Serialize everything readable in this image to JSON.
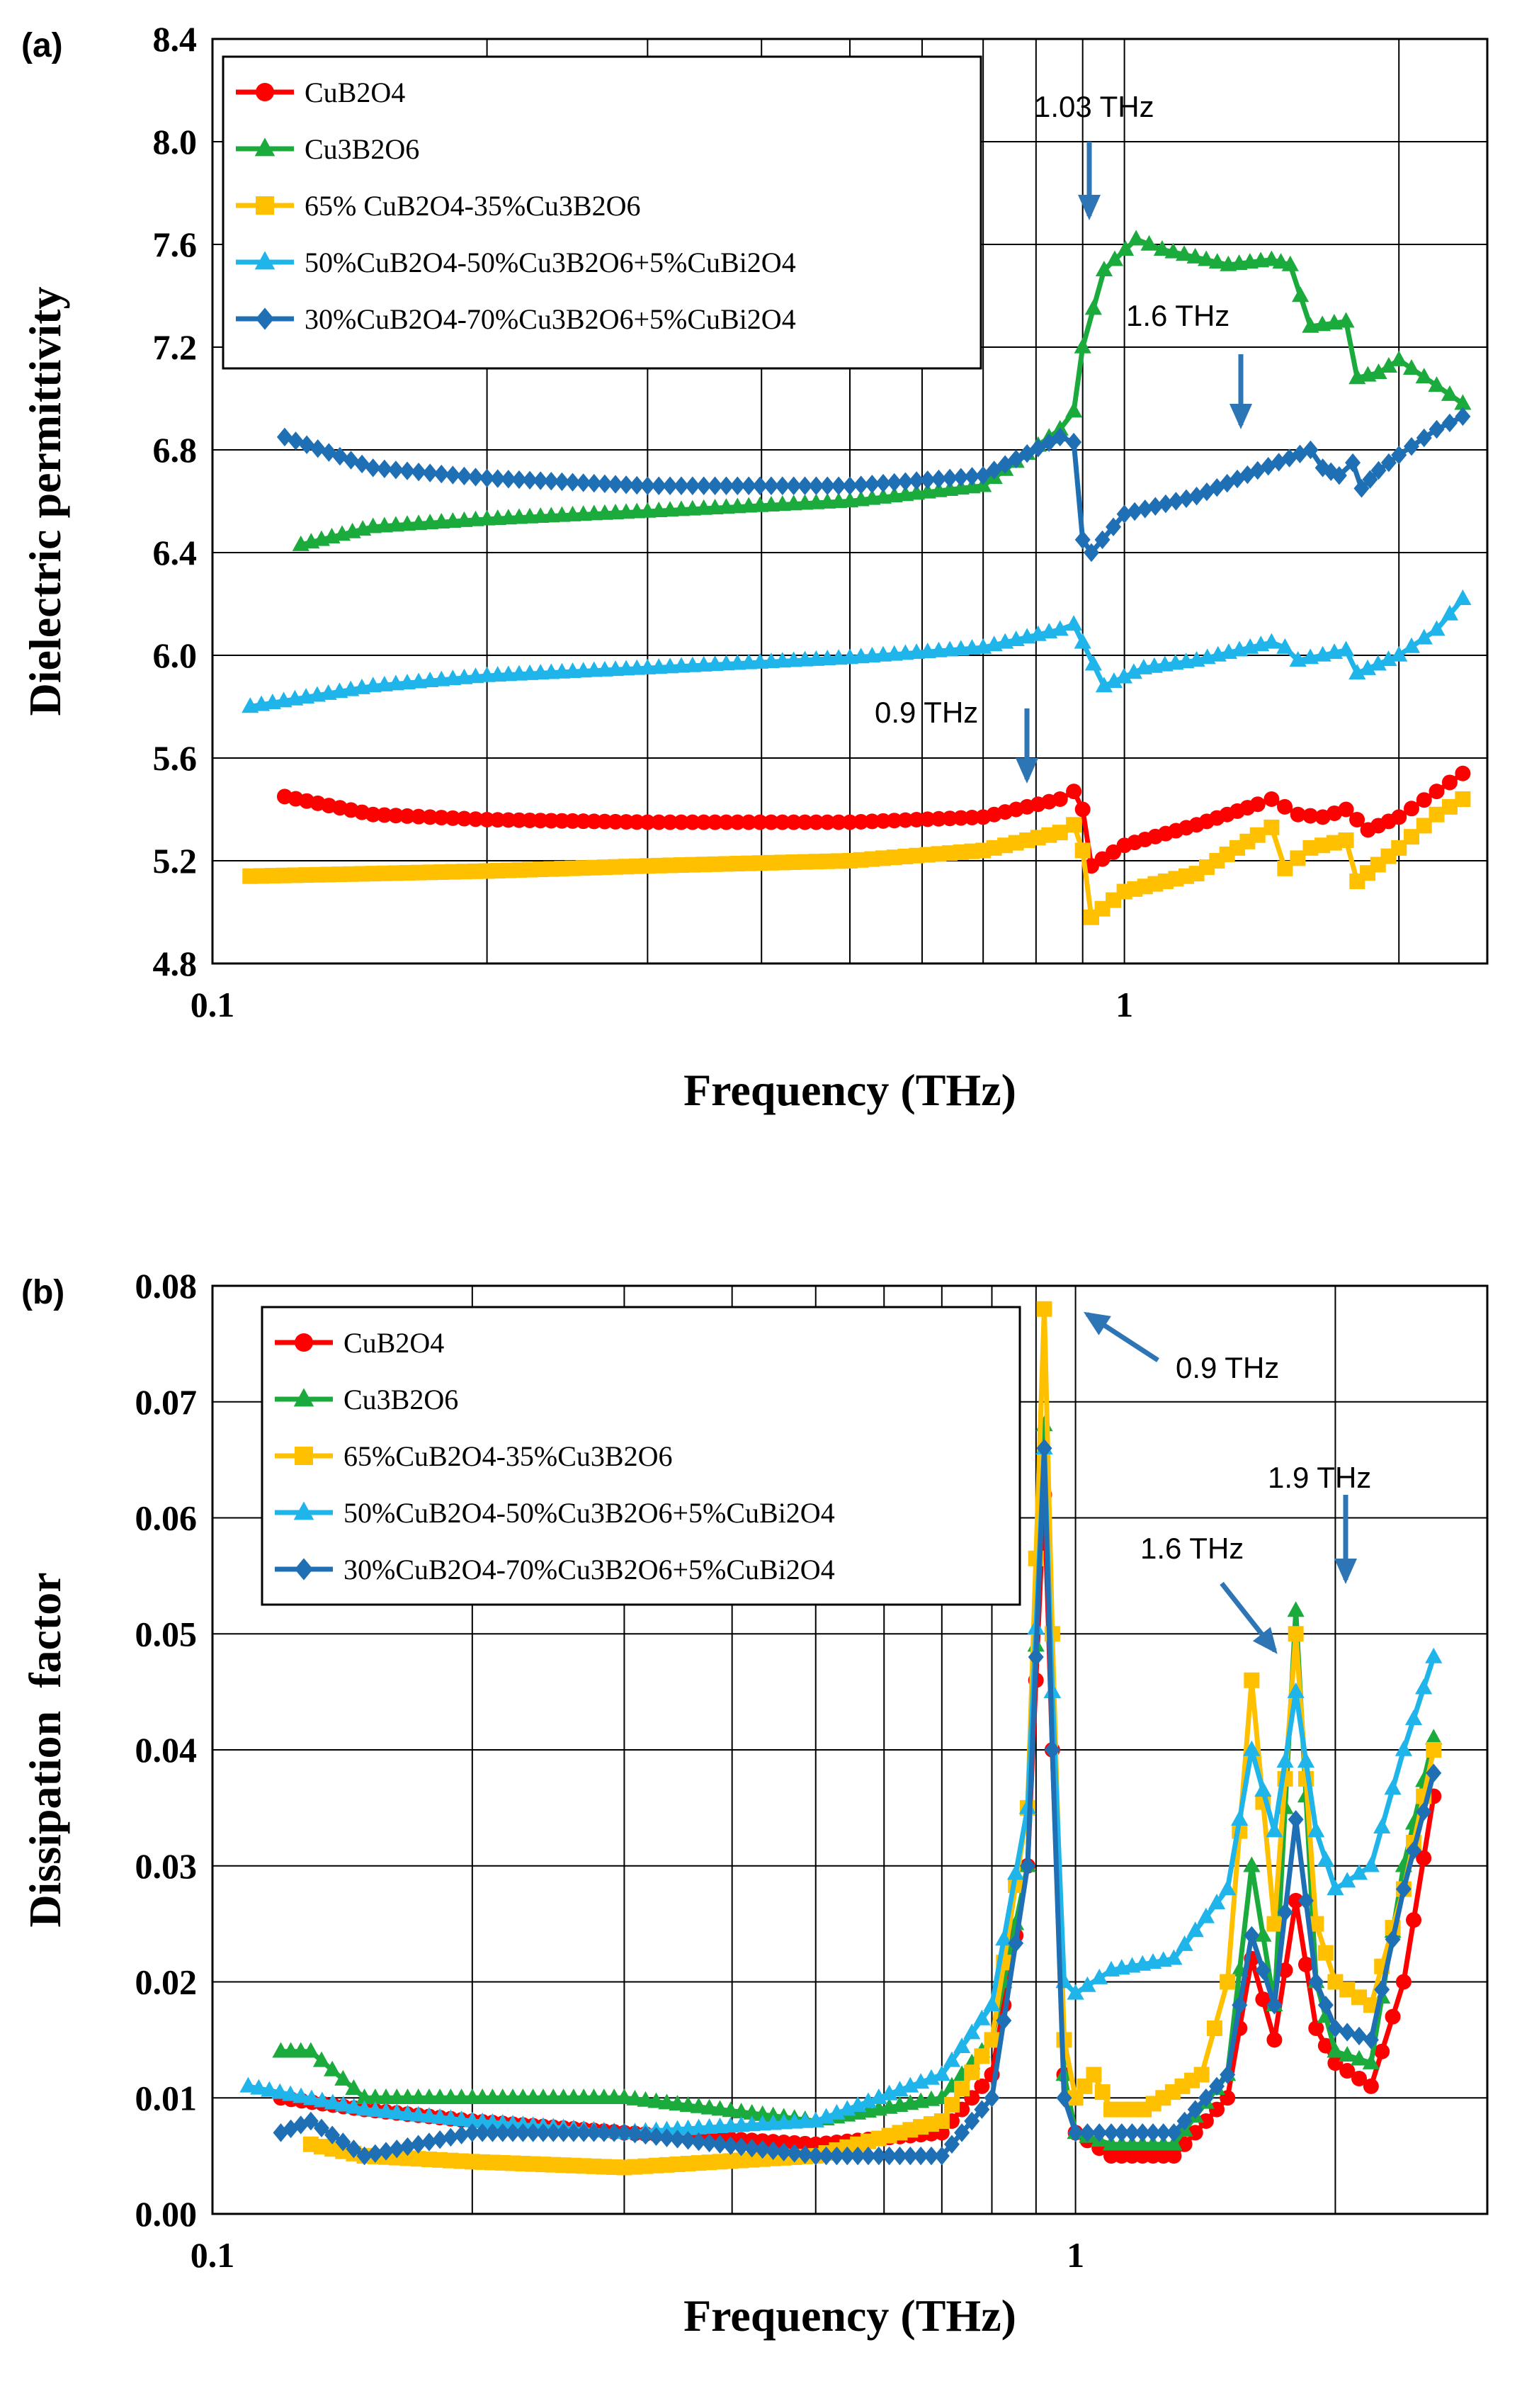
{
  "chart_data": [
    {
      "panel_label": "(a)",
      "type": "line",
      "xlabel": "Frequency (THz)",
      "ylabel": "Dielectric permittivity",
      "xscale": "log",
      "xlim": [
        0.1,
        2.5
      ],
      "ylim": [
        4.8,
        8.4
      ],
      "x_ticks": [
        "0.1",
        "1"
      ],
      "y_ticks": [
        "4.8",
        "5.2",
        "5.6",
        "6.0",
        "6.4",
        "6.8",
        "7.2",
        "7.6",
        "8.0",
        "8.4"
      ],
      "legend_position": "top-left",
      "grid": true,
      "series": [
        {
          "name": "CuB2O4",
          "color": "#ff0000",
          "marker": "circle",
          "x": [
            0.12,
            0.15,
            0.2,
            0.3,
            0.5,
            0.7,
            0.85,
            0.88,
            0.9,
            0.92,
            1.0,
            1.2,
            1.4,
            1.45,
            1.55,
            1.65,
            1.75,
            1.85,
            2.0,
            2.2,
            2.35
          ],
          "y": [
            5.45,
            5.38,
            5.36,
            5.35,
            5.35,
            5.37,
            5.44,
            5.47,
            5.4,
            5.18,
            5.26,
            5.34,
            5.42,
            5.44,
            5.38,
            5.37,
            5.4,
            5.32,
            5.37,
            5.47,
            5.54
          ]
        },
        {
          "name": "Cu3B2O6",
          "color": "#1aab3c",
          "marker": "triangle",
          "x": [
            0.125,
            0.15,
            0.2,
            0.3,
            0.5,
            0.7,
            0.85,
            0.88,
            0.9,
            0.95,
            1.03,
            1.1,
            1.3,
            1.45,
            1.52,
            1.6,
            1.75,
            1.8,
            1.9,
            2.0,
            2.2,
            2.35
          ],
          "y": [
            6.43,
            6.5,
            6.53,
            6.56,
            6.6,
            6.66,
            6.88,
            6.95,
            7.2,
            7.5,
            7.62,
            7.58,
            7.52,
            7.54,
            7.52,
            7.28,
            7.3,
            7.08,
            7.1,
            7.15,
            7.05,
            6.98
          ]
        },
        {
          "name": "65% CuB2O4-35%Cu3B2O6",
          "color": "#ffc000",
          "marker": "square",
          "x": [
            0.11,
            0.15,
            0.2,
            0.3,
            0.5,
            0.7,
            0.85,
            0.88,
            0.9,
            0.92,
            1.0,
            1.2,
            1.4,
            1.45,
            1.5,
            1.6,
            1.75,
            1.8,
            2.0,
            2.2,
            2.35
          ],
          "y": [
            5.14,
            5.15,
            5.16,
            5.18,
            5.2,
            5.24,
            5.31,
            5.34,
            5.24,
            4.98,
            5.08,
            5.15,
            5.3,
            5.33,
            5.17,
            5.25,
            5.28,
            5.12,
            5.25,
            5.38,
            5.44
          ]
        },
        {
          "name": "50%CuB2O4-50%Cu3B2O6+5%CuBi2O4",
          "color": "#1fb5ea",
          "marker": "triangle",
          "x": [
            0.11,
            0.15,
            0.2,
            0.3,
            0.5,
            0.7,
            0.85,
            0.88,
            0.9,
            0.95,
            1.05,
            1.2,
            1.45,
            1.5,
            1.55,
            1.65,
            1.75,
            1.8,
            2.0,
            2.2,
            2.35
          ],
          "y": [
            5.8,
            5.88,
            5.92,
            5.95,
            5.99,
            6.03,
            6.1,
            6.12,
            6.05,
            5.88,
            5.95,
            5.98,
            6.05,
            6.03,
            5.98,
            6.0,
            6.02,
            5.93,
            6.0,
            6.1,
            6.22
          ]
        },
        {
          "name": "30%CuB2O4-70%Cu3B2O6+5%CuBi2O4",
          "color": "#1f6fb5",
          "marker": "diamond",
          "x": [
            0.12,
            0.15,
            0.2,
            0.3,
            0.5,
            0.7,
            0.85,
            0.88,
            0.9,
            0.92,
            1.0,
            1.2,
            1.4,
            1.6,
            1.65,
            1.72,
            1.78,
            1.82,
            1.9,
            2.0,
            2.2,
            2.35
          ],
          "y": [
            6.85,
            6.73,
            6.69,
            6.66,
            6.66,
            6.7,
            6.85,
            6.83,
            6.45,
            6.4,
            6.55,
            6.62,
            6.72,
            6.8,
            6.73,
            6.7,
            6.75,
            6.65,
            6.72,
            6.78,
            6.88,
            6.93
          ]
        }
      ],
      "annotations": [
        {
          "text": "1.03 THz",
          "x": 1.03
        },
        {
          "text": "1.6 THz",
          "x": 1.6
        },
        {
          "text": "0.9 THz",
          "x": 0.9
        }
      ]
    },
    {
      "panel_label": "(b)",
      "type": "line",
      "xlabel": "Frequency (THz)",
      "ylabel": "Dissipation  factor",
      "xscale": "log",
      "xlim": [
        0.1,
        3.0
      ],
      "ylim": [
        0.0,
        0.08
      ],
      "x_ticks": [
        "0.1",
        "1"
      ],
      "y_ticks": [
        "0.00",
        "0.01",
        "0.02",
        "0.03",
        "0.04",
        "0.05",
        "0.06",
        "0.07",
        "0.08"
      ],
      "legend_position": "top-left",
      "grid": true,
      "series": [
        {
          "name": "CuB2O4",
          "color": "#ff0000",
          "marker": "circle",
          "x": [
            0.12,
            0.15,
            0.2,
            0.3,
            0.5,
            0.7,
            0.8,
            0.88,
            0.92,
            0.94,
            0.97,
            1.0,
            1.1,
            1.3,
            1.5,
            1.6,
            1.7,
            1.8,
            1.9,
            2.0,
            2.2,
            2.4,
            2.6
          ],
          "y": [
            0.01,
            0.009,
            0.008,
            0.007,
            0.006,
            0.007,
            0.012,
            0.03,
            0.062,
            0.04,
            0.012,
            0.007,
            0.005,
            0.005,
            0.01,
            0.022,
            0.015,
            0.027,
            0.016,
            0.013,
            0.011,
            0.02,
            0.036
          ]
        },
        {
          "name": "Cu3B2O6",
          "color": "#1aab3c",
          "marker": "triangle",
          "x": [
            0.12,
            0.13,
            0.15,
            0.2,
            0.3,
            0.5,
            0.7,
            0.8,
            0.88,
            0.92,
            0.94,
            0.97,
            1.0,
            1.1,
            1.3,
            1.5,
            1.6,
            1.7,
            1.8,
            1.9,
            2.0,
            2.2,
            2.4,
            2.6
          ],
          "y": [
            0.014,
            0.014,
            0.01,
            0.01,
            0.01,
            0.008,
            0.01,
            0.015,
            0.03,
            0.068,
            0.045,
            0.012,
            0.007,
            0.006,
            0.006,
            0.012,
            0.03,
            0.018,
            0.052,
            0.02,
            0.014,
            0.013,
            0.03,
            0.041
          ]
        },
        {
          "name": "65%CuB2O4-35%Cu3B2O6",
          "color": "#ffc000",
          "marker": "square",
          "x": [
            0.13,
            0.15,
            0.2,
            0.3,
            0.5,
            0.7,
            0.8,
            0.88,
            0.92,
            0.94,
            0.97,
            1.0,
            1.05,
            1.1,
            1.2,
            1.4,
            1.5,
            1.6,
            1.7,
            1.8,
            1.9,
            2.0,
            2.2,
            2.4,
            2.6
          ],
          "y": [
            0.006,
            0.005,
            0.0045,
            0.004,
            0.005,
            0.008,
            0.015,
            0.035,
            0.078,
            0.05,
            0.015,
            0.01,
            0.012,
            0.009,
            0.009,
            0.012,
            0.02,
            0.046,
            0.025,
            0.05,
            0.025,
            0.02,
            0.018,
            0.028,
            0.04
          ]
        },
        {
          "name": "50%CuB2O4-50%Cu3B2O6+5%CuBi2O4",
          "color": "#1fb5ea",
          "marker": "triangle",
          "x": [
            0.11,
            0.15,
            0.2,
            0.3,
            0.5,
            0.7,
            0.8,
            0.88,
            0.92,
            0.94,
            0.97,
            1.0,
            1.1,
            1.3,
            1.5,
            1.6,
            1.7,
            1.8,
            1.9,
            2.0,
            2.2,
            2.4,
            2.6
          ],
          "y": [
            0.011,
            0.009,
            0.008,
            0.007,
            0.008,
            0.012,
            0.018,
            0.035,
            0.066,
            0.045,
            0.02,
            0.019,
            0.021,
            0.022,
            0.028,
            0.04,
            0.033,
            0.045,
            0.033,
            0.028,
            0.03,
            0.04,
            0.048
          ]
        },
        {
          "name": "30%CuB2O4-70%Cu3B2O6+5%CuBi2O4",
          "color": "#1f6fb5",
          "marker": "diamond",
          "x": [
            0.12,
            0.13,
            0.15,
            0.2,
            0.3,
            0.5,
            0.7,
            0.8,
            0.88,
            0.92,
            0.94,
            0.97,
            1.0,
            1.1,
            1.3,
            1.5,
            1.6,
            1.7,
            1.8,
            1.9,
            2.0,
            2.2,
            2.4,
            2.6
          ],
          "y": [
            0.007,
            0.008,
            0.005,
            0.007,
            0.007,
            0.005,
            0.005,
            0.01,
            0.03,
            0.066,
            0.04,
            0.01,
            0.007,
            0.007,
            0.007,
            0.012,
            0.024,
            0.018,
            0.034,
            0.02,
            0.016,
            0.015,
            0.028,
            0.038
          ]
        }
      ],
      "annotations": [
        {
          "text": "0.9 THz",
          "x": 0.93
        },
        {
          "text": "1.9 THz",
          "x": 1.8
        },
        {
          "text": "1.6 THz",
          "x": 1.6
        }
      ]
    }
  ]
}
